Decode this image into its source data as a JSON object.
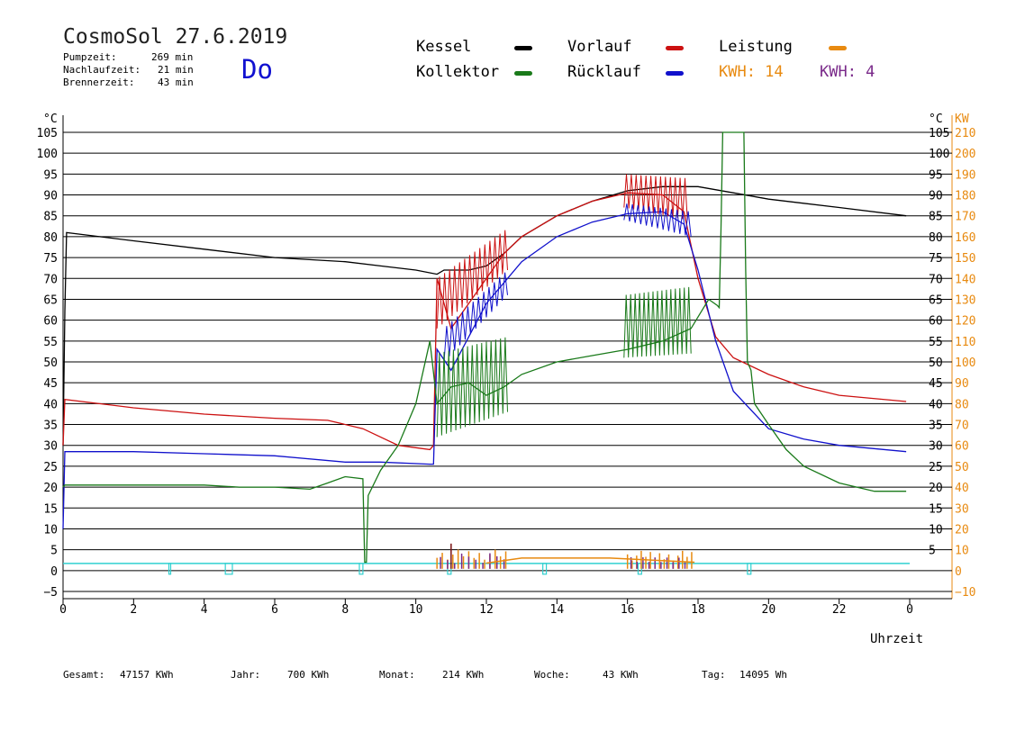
{
  "header": {
    "title": "CosmoSol 27.6.2019",
    "day": "Do",
    "stats": [
      {
        "label": "Pumpzeit:",
        "value": "269 min"
      },
      {
        "label": "Nachlaufzeit:",
        "value": "21 min"
      },
      {
        "label": "Brennerzeit:",
        "value": "43 min"
      }
    ]
  },
  "legend": {
    "kessel": "Kessel",
    "kollektor": "Kollektor",
    "vorlauf": "Vorlauf",
    "ruecklauf": "Rücklauf",
    "leistung": "Leistung",
    "kwh1": "KWH: 14",
    "kwh2": "KWH: 4"
  },
  "footer": {
    "gesamt_label": "Gesamt:",
    "gesamt_value": "47157 KWh",
    "jahr_label": "Jahr:",
    "jahr_value": "700 KWh",
    "monat_label": "Monat:",
    "monat_value": "214 KWh",
    "woche_label": "Woche:",
    "woche_value": "43 KWh",
    "tag_label": "Tag:",
    "tag_value": "14095 Wh"
  },
  "colors": {
    "kessel": "#000000",
    "kollektor": "#1a7a1a",
    "vorlauf": "#cc1111",
    "ruecklauf": "#1111cc",
    "leistung": "#e88a10",
    "kwh2": "#7a2a8a",
    "pump": "#30d0d0"
  },
  "chart_data": {
    "type": "line",
    "xlabel": "Uhrzeit",
    "ylabel_left": "°C",
    "ylabel_right_1": "°C",
    "ylabel_right_2": "KW",
    "xlim": [
      0,
      24
    ],
    "ylim": [
      -5,
      105
    ],
    "y2lim": [
      -10,
      210
    ],
    "x_ticks": [
      "0",
      "2",
      "4",
      "6",
      "8",
      "10",
      "12",
      "14",
      "16",
      "18",
      "20",
      "22",
      "0"
    ],
    "y_ticks": [
      -5,
      0,
      5,
      10,
      15,
      20,
      25,
      30,
      35,
      40,
      45,
      50,
      55,
      60,
      65,
      70,
      75,
      80,
      85,
      90,
      95,
      100,
      105
    ],
    "y2_ticks": [
      -10,
      0,
      10,
      20,
      30,
      40,
      50,
      60,
      70,
      80,
      90,
      100,
      110,
      120,
      130,
      140,
      150,
      160,
      170,
      180,
      190,
      200,
      210
    ],
    "grid": "horizontal",
    "series": [
      {
        "name": "Kessel",
        "color": "#000000",
        "x": [
          0,
          0.05,
          0.1,
          2,
          4,
          6,
          8,
          9,
          10,
          10.6,
          10.8,
          11.5,
          12,
          12.5,
          13,
          14,
          15,
          16,
          17,
          18,
          19,
          20,
          22,
          23.9
        ],
        "y": [
          30,
          62,
          81,
          79,
          77,
          75,
          74,
          73,
          72,
          71,
          72,
          72,
          73,
          76,
          80,
          85,
          88.5,
          91,
          92,
          92,
          90.5,
          89,
          87,
          85
        ]
      },
      {
        "name": "Vorlauf",
        "color": "#cc1111",
        "x": [
          0,
          0.05,
          2,
          4,
          6,
          7.5,
          8.5,
          9.5,
          10.4,
          10.5,
          10.6,
          11,
          11.5,
          12,
          12.5,
          13,
          14,
          15,
          16,
          17,
          17.6,
          18,
          18.5,
          19,
          20,
          21,
          22,
          23.9
        ],
        "y": [
          30,
          41,
          39,
          37.5,
          36.5,
          36,
          34,
          30,
          29,
          30,
          70,
          58,
          64,
          70,
          76,
          80,
          85,
          88.5,
          90.5,
          90,
          86,
          70,
          56,
          51,
          47,
          44,
          42,
          40.5
        ]
      },
      {
        "name": "Rücklauf",
        "color": "#1111cc",
        "x": [
          0,
          0.05,
          2,
          4,
          6,
          8,
          9,
          10.4,
          10.5,
          10.6,
          11,
          11.5,
          12,
          12.5,
          13,
          14,
          15,
          16,
          17,
          17.6,
          18,
          18.5,
          19,
          20,
          21,
          22,
          23.9
        ],
        "y": [
          10,
          28.5,
          28.5,
          28,
          27.5,
          26,
          26,
          25.5,
          25.5,
          53,
          48,
          56,
          64,
          69,
          74,
          80,
          83.5,
          85.5,
          86,
          83,
          72,
          55,
          43,
          34,
          31.5,
          30,
          28.5
        ]
      },
      {
        "name": "Kollektor",
        "color": "#1a7a1a",
        "x": [
          0,
          0.05,
          2,
          4,
          5,
          6,
          7,
          7.5,
          8,
          8.5,
          8.55,
          8.6,
          8.65,
          9,
          9.5,
          10,
          10.4,
          10.6,
          11,
          11.5,
          12,
          12.5,
          13,
          14,
          15,
          16,
          17,
          17.8,
          18.3,
          18.55,
          18.6,
          18.65,
          18.7,
          19.3,
          19.35,
          19.4,
          19.5,
          19.6,
          20,
          20.5,
          21,
          22,
          23,
          23.9
        ],
        "y": [
          20,
          20.5,
          20.5,
          20.5,
          20,
          20,
          19.5,
          21,
          22.5,
          22,
          2,
          2,
          18,
          24,
          30,
          40,
          55,
          40,
          44,
          45,
          42,
          44,
          47,
          50,
          51.5,
          53,
          55,
          58,
          65,
          63.5,
          63,
          82,
          105,
          105,
          72,
          50,
          48,
          40,
          35,
          29,
          25,
          21,
          19,
          19
        ]
      }
    ],
    "annotations": [
      "KWH: 14",
      "KWH: 4"
    ]
  }
}
